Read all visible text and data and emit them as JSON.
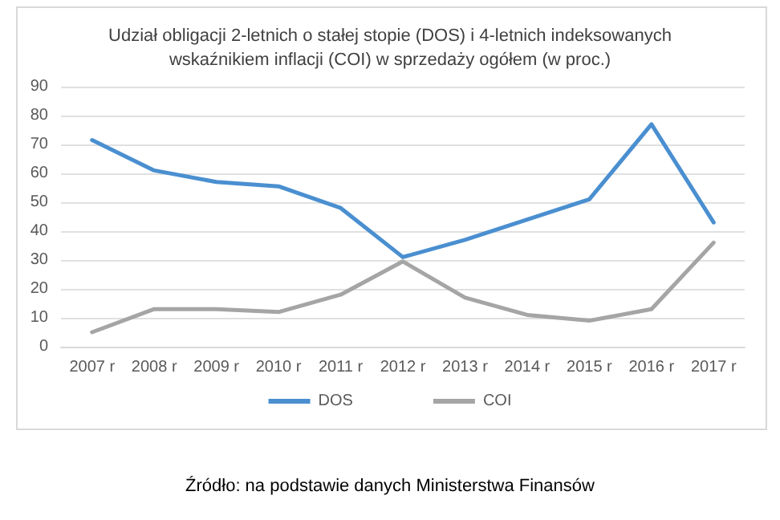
{
  "chart_data": {
    "type": "line",
    "title": "Udział obligacji 2-letnich o stałej stopie (DOS) i 4-letnich indeksowanych\nwskaźnikiem inflacji (COI) w sprzedaży ogółem (w proc.)",
    "categories": [
      "2007 r",
      "2008 r",
      "2009 r",
      "2010 r",
      "2011 r",
      "2012 r",
      "2013 r",
      "2014 r",
      "2015 r",
      "2016 r",
      "2017 r"
    ],
    "series": [
      {
        "name": "DOS",
        "color": "#4a8fd0",
        "values": [
          71.5,
          61,
          57,
          55.5,
          48,
          31,
          37,
          44,
          51,
          77,
          43
        ]
      },
      {
        "name": "COI",
        "color": "#a5a5a5",
        "values": [
          5,
          13,
          13,
          12,
          18,
          29.5,
          17,
          11,
          9,
          13,
          36
        ]
      }
    ],
    "ylim": [
      0,
      90
    ],
    "yticks": [
      0,
      10,
      20,
      30,
      40,
      50,
      60,
      70,
      80,
      90
    ],
    "grid": "y",
    "legend": "bottom",
    "marker": "none",
    "line_style": "solid",
    "annotations": [
      "Źródło: na podstawie danych Ministerstwa Finansów"
    ]
  }
}
